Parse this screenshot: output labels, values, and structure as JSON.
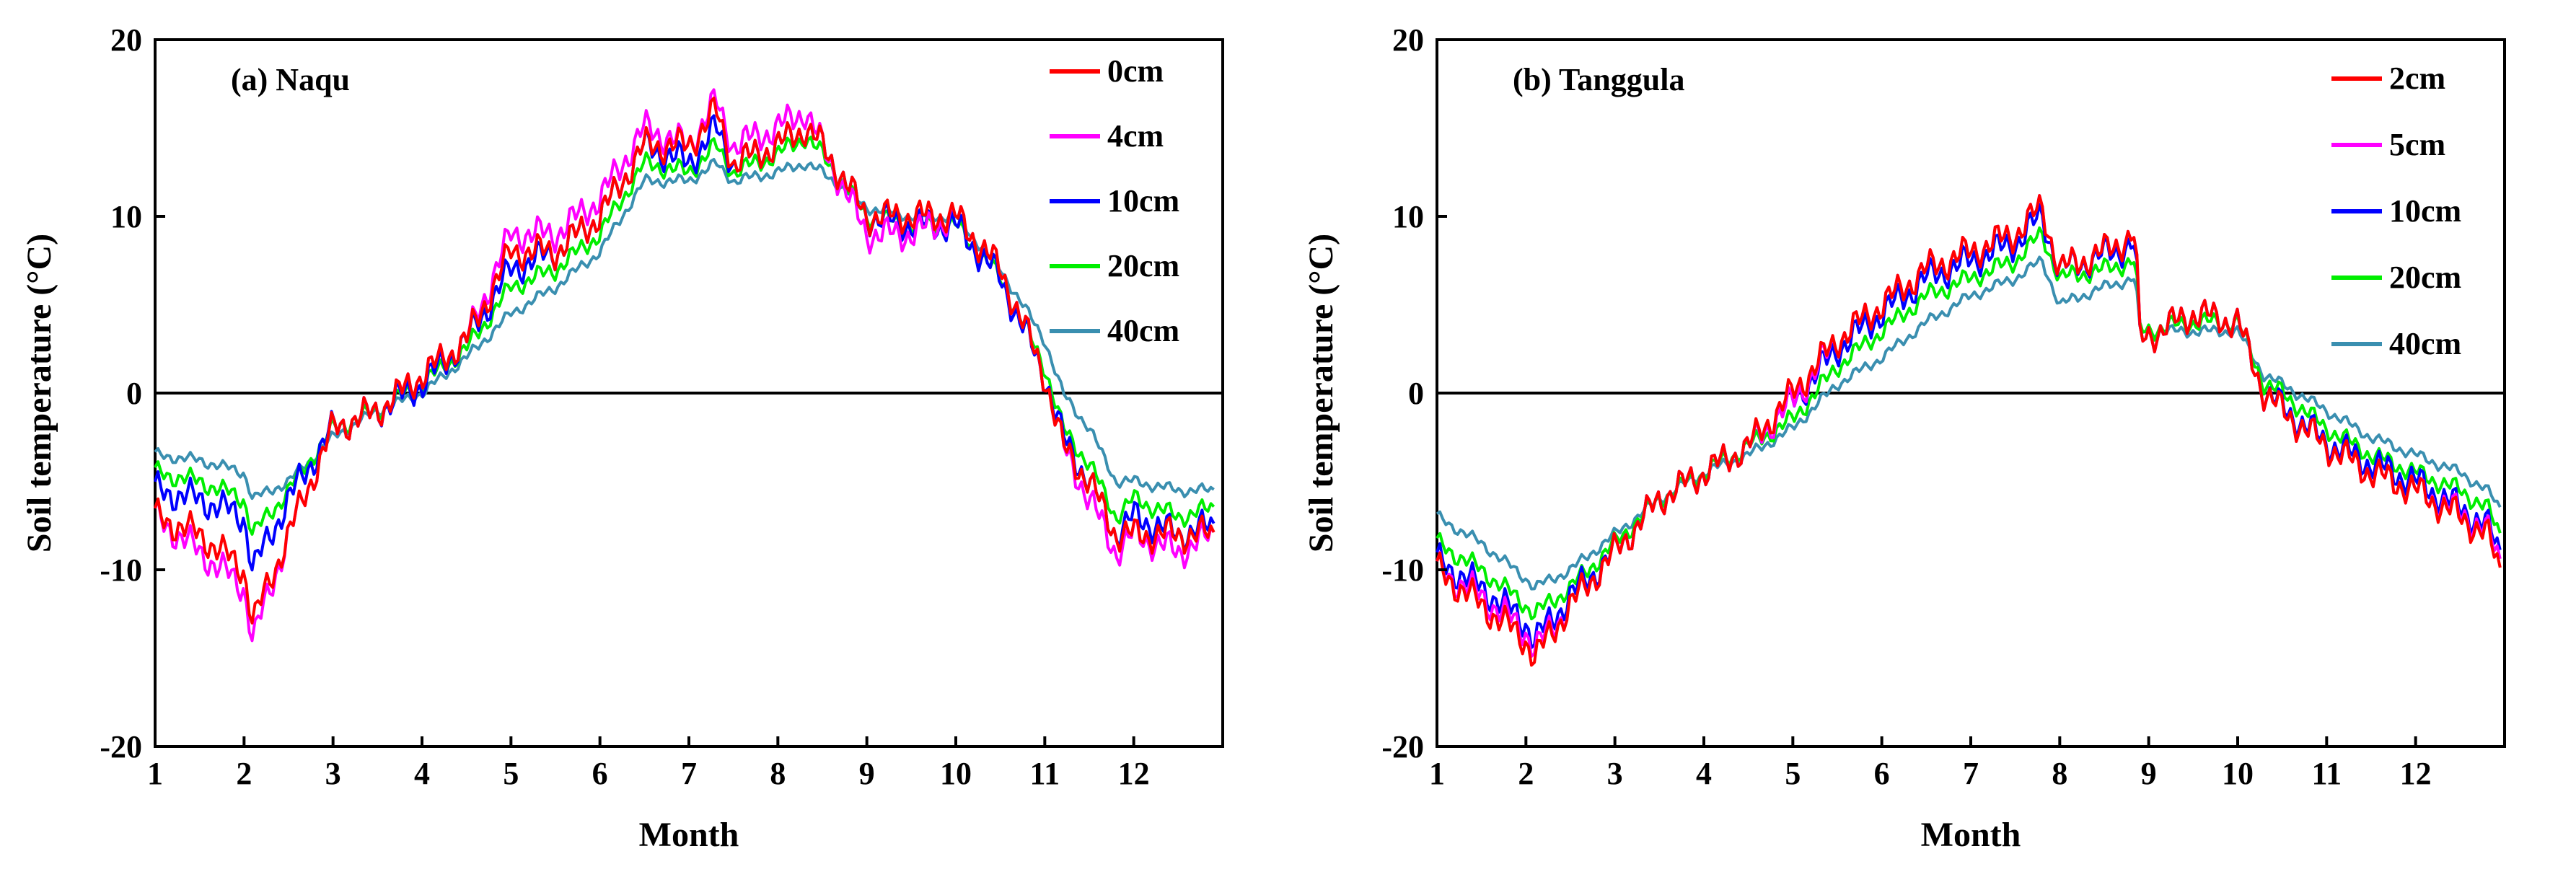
{
  "figure": {
    "colors": {
      "c0cm": "#ff0000",
      "c2cm": "#ff0000",
      "c4cm": "#ff00ff",
      "c5cm": "#ff00ff",
      "c10cm": "#0000ff",
      "c20cm": "#00ee00",
      "c40cm": "#3a8fb0",
      "axis": "#000000",
      "zero_line": "#000000"
    }
  },
  "chart_data": [
    {
      "type": "line",
      "panel": "a",
      "title": "(a) Naqu",
      "xlabel": "Month",
      "ylabel": "Soil temperature (°C)",
      "xlim": [
        1,
        13
      ],
      "ylim": [
        -20,
        20
      ],
      "xticks": [
        "1",
        "2",
        "3",
        "4",
        "5",
        "6",
        "7",
        "8",
        "9",
        "10",
        "11",
        "12"
      ],
      "yticks": [
        "-20",
        "-10",
        "0",
        "10",
        "20"
      ],
      "zero_line": true,
      "legend_position": "top-right",
      "x": [
        1.0,
        1.5,
        2.0,
        2.1,
        2.5,
        3.0,
        3.5,
        4.0,
        4.5,
        5.0,
        5.5,
        6.0,
        6.5,
        7.0,
        7.3,
        7.5,
        8.0,
        8.3,
        8.5,
        9.0,
        9.5,
        10.0,
        10.5,
        11.0,
        11.2,
        11.5,
        11.8,
        12.0,
        12.5,
        12.9
      ],
      "series": [
        {
          "name": "0cm",
          "color_key": "c0cm",
          "values": [
            -7,
            -8,
            -10,
            -13,
            -8,
            -2,
            -1,
            1,
            3,
            8,
            8,
            10,
            14,
            14,
            16,
            13,
            14,
            15,
            14,
            10,
            10,
            10,
            7,
            1,
            -3,
            -5,
            -8,
            -8,
            -8,
            -8
          ]
        },
        {
          "name": "4cm",
          "color_key": "c4cm",
          "values": [
            -7,
            -9,
            -11,
            -14,
            -8,
            -2,
            -1,
            1,
            3,
            9,
            9,
            11,
            15,
            14,
            16.5,
            14,
            15,
            16,
            14,
            9,
            9,
            10,
            7,
            1,
            -3,
            -6,
            -9,
            -8,
            -9,
            -8
          ]
        },
        {
          "name": "10cm",
          "color_key": "c10cm",
          "values": [
            -5.5,
            -6,
            -7,
            -10,
            -6,
            -2,
            -1,
            0.5,
            3,
            7,
            8,
            10,
            14,
            13,
            15,
            13,
            14,
            15,
            14,
            10,
            9.5,
            9.5,
            6.5,
            1,
            -2.5,
            -5,
            -8,
            -7,
            -8,
            -7.5
          ]
        },
        {
          "name": "20cm",
          "color_key": "c20cm",
          "values": [
            -4.5,
            -5,
            -6,
            -8,
            -5.5,
            -2,
            -1,
            0.5,
            2.5,
            6,
            7,
            9,
            13,
            12.5,
            14,
            12.5,
            13.5,
            14.5,
            13.5,
            10,
            9.5,
            9.5,
            6.5,
            1.5,
            -2,
            -4,
            -7,
            -6,
            -7,
            -6.5
          ]
        },
        {
          "name": "40cm",
          "color_key": "c40cm",
          "values": [
            -3.5,
            -3.8,
            -4.5,
            -6,
            -5,
            -2.5,
            -1,
            0,
            2,
            4.5,
            6,
            8,
            12,
            12,
            13,
            12,
            12.5,
            13,
            12.5,
            10.5,
            10,
            10,
            7,
            3,
            0,
            -2,
            -5,
            -5,
            -5.5,
            -5.5
          ]
        }
      ]
    },
    {
      "type": "line",
      "panel": "b",
      "title": "(b) Tanggula",
      "xlabel": "Month",
      "ylabel": "Soil temperature (°C)",
      "xlim": [
        1,
        13
      ],
      "ylim": [
        -20,
        20
      ],
      "xticks": [
        "1",
        "2",
        "3",
        "4",
        "5",
        "6",
        "7",
        "8",
        "9",
        "10",
        "11",
        "12"
      ],
      "yticks": [
        "-20",
        "-10",
        "0",
        "10",
        "20"
      ],
      "zero_line": true,
      "legend_position": "top-right",
      "x": [
        1.0,
        1.5,
        2.0,
        2.1,
        2.5,
        3.0,
        3.5,
        4.0,
        4.5,
        5.0,
        5.5,
        6.0,
        6.5,
        7.0,
        7.5,
        7.8,
        8.0,
        8.5,
        8.85,
        8.9,
        9.5,
        10.0,
        10.3,
        10.5,
        11.0,
        11.5,
        12.0,
        12.5,
        12.8,
        12.95
      ],
      "series": [
        {
          "name": "2cm",
          "color_key": "c2cm",
          "values": [
            -10,
            -12,
            -14,
            -15,
            -12,
            -9,
            -6,
            -4.5,
            -3,
            0,
            3,
            5,
            7,
            8,
            9,
            10.5,
            7,
            8,
            9,
            3,
            4.5,
            4,
            0,
            -1,
            -3,
            -4.5,
            -5.5,
            -7,
            -8,
            -10
          ]
        },
        {
          "name": "5cm",
          "color_key": "c5cm",
          "values": [
            -10,
            -11.5,
            -13.5,
            -14.5,
            -12,
            -9,
            -6,
            -4.5,
            -3,
            -0.5,
            3,
            5,
            7,
            8,
            9,
            10.5,
            7,
            8,
            9,
            3,
            4.5,
            4,
            0,
            -1,
            -3,
            -4.5,
            -5.5,
            -6.8,
            -7.8,
            -9.5
          ]
        },
        {
          "name": "10cm",
          "color_key": "c10cm",
          "values": [
            -9.5,
            -11,
            -13,
            -14,
            -11.5,
            -9,
            -6,
            -4.5,
            -3,
            -0.5,
            2.5,
            4.5,
            6.5,
            7.5,
            8.5,
            10,
            7,
            7.8,
            8.5,
            3,
            4.5,
            4,
            0,
            -0.8,
            -2.8,
            -4,
            -5,
            -6.5,
            -7.5,
            -9
          ]
        },
        {
          "name": "20cm",
          "color_key": "c20cm",
          "values": [
            -8.5,
            -10,
            -12,
            -12.5,
            -11,
            -8.5,
            -6,
            -4.5,
            -3,
            -1.5,
            1.5,
            3.5,
            5.5,
            6.5,
            7.5,
            9,
            6.5,
            7,
            7.5,
            3.5,
            4,
            4,
            0.5,
            0,
            -2,
            -3.5,
            -4.5,
            -5.5,
            -6.5,
            -8
          ]
        },
        {
          "name": "40cm",
          "color_key": "c40cm",
          "values": [
            -7,
            -8.5,
            -10.5,
            -11,
            -10,
            -8,
            -6,
            -4.5,
            -3.5,
            -2,
            0.5,
            2,
            4,
            5.5,
            6.5,
            7.5,
            5,
            6,
            6.5,
            3.5,
            3.5,
            3.5,
            1,
            0.5,
            -1,
            -2.5,
            -3.5,
            -4.5,
            -5.5,
            -6.5
          ]
        }
      ]
    }
  ]
}
